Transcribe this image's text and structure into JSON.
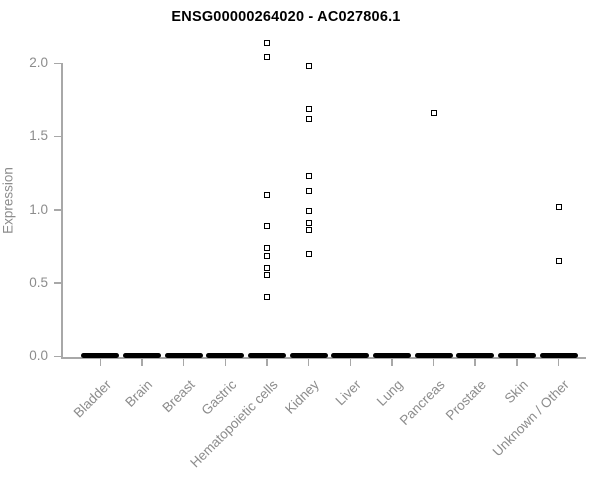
{
  "chart": {
    "title": "ENSG00000264020 - AC027806.1",
    "ylabel": "Expression"
  },
  "chart_data": {
    "type": "scatter",
    "subtype": "strip-plot",
    "title": "ENSG00000264020 - AC027806.1",
    "xlabel": "",
    "ylabel": "Expression",
    "ylim": [
      0,
      2.2
    ],
    "grid": false,
    "legend": "none",
    "marker": "open-square",
    "colors": {
      "marker": "#000000",
      "title": "#000000",
      "axis_text": "#8c8c8c",
      "axis_line": "#a8a8a8",
      "background": "#ffffff"
    },
    "y_ticks": [
      0,
      0.5,
      1,
      1.5,
      2
    ],
    "y_tick_labels": [
      "0.0",
      "0.5",
      "1.0",
      "1.5",
      "2.0"
    ],
    "categories": [
      "Bladder",
      "Brain",
      "Breast",
      "Gastric",
      "Hematopoietic cells",
      "Kidney",
      "Liver",
      "Lung",
      "Pancreas",
      "Prostate",
      "Skin",
      "Unknown / Other"
    ],
    "series": [
      {
        "category": "Bladder",
        "zero_cluster": true,
        "values": []
      },
      {
        "category": "Brain",
        "zero_cluster": true,
        "values": []
      },
      {
        "category": "Breast",
        "zero_cluster": true,
        "values": []
      },
      {
        "category": "Gastric",
        "zero_cluster": true,
        "values": []
      },
      {
        "category": "Hematopoietic cells",
        "zero_cluster": true,
        "values": [
          2.14,
          2.04,
          1.1,
          0.89,
          0.74,
          0.68,
          0.6,
          0.55,
          0.4
        ]
      },
      {
        "category": "Kidney",
        "zero_cluster": true,
        "values": [
          1.98,
          1.69,
          1.62,
          1.23,
          1.13,
          0.99,
          0.91,
          0.86,
          0.7
        ]
      },
      {
        "category": "Liver",
        "zero_cluster": true,
        "values": []
      },
      {
        "category": "Lung",
        "zero_cluster": true,
        "values": []
      },
      {
        "category": "Pancreas",
        "zero_cluster": true,
        "values": [
          1.66
        ]
      },
      {
        "category": "Prostate",
        "zero_cluster": true,
        "values": []
      },
      {
        "category": "Skin",
        "zero_cluster": true,
        "values": []
      },
      {
        "category": "Unknown / Other",
        "zero_cluster": true,
        "values": [
          1.02,
          0.65
        ]
      }
    ]
  }
}
